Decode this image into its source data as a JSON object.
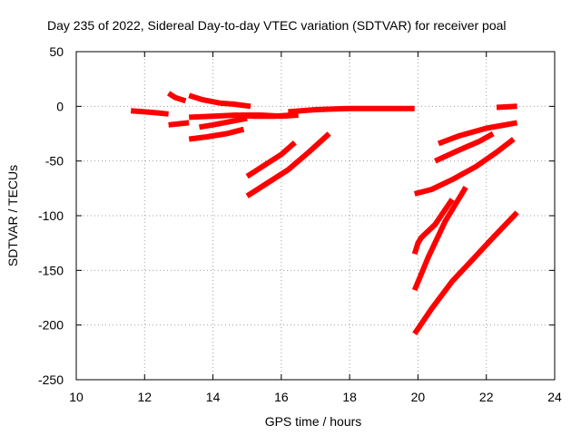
{
  "chart_data": {
    "type": "line",
    "title": "Day 235 of 2022, Sidereal Day-to-day VTEC variation (SDTVAR) for receiver poal",
    "xlabel": "GPS time / hours",
    "ylabel": "SDTVAR / TECUs",
    "xlim": [
      10,
      24
    ],
    "ylim": [
      -250,
      50
    ],
    "xticks": [
      "10",
      "12",
      "14",
      "16",
      "18",
      "20",
      "22",
      "24"
    ],
    "yticks": [
      "50",
      "0",
      "-50",
      "-100",
      "-150",
      "-200",
      "-250"
    ],
    "grid": true,
    "legend": "none",
    "color": "#ff0000",
    "series": [
      {
        "x": [
          11.6,
          12.0,
          12.4,
          12.7
        ],
        "y": [
          -4,
          -5,
          -6,
          -7
        ]
      },
      {
        "x": [
          12.7,
          12.9,
          13.2
        ],
        "y": [
          12,
          8,
          5
        ]
      },
      {
        "x": [
          13.3,
          13.7,
          14.2,
          14.6,
          15.1
        ],
        "y": [
          10,
          6,
          3,
          2,
          0
        ]
      },
      {
        "x": [
          12.7,
          13.0,
          13.3
        ],
        "y": [
          -17,
          -16,
          -15
        ]
      },
      {
        "x": [
          13.3,
          14.0,
          14.7,
          15.2,
          15.8,
          16.3
        ],
        "y": [
          -10,
          -9,
          -8,
          -9,
          -9,
          -8
        ]
      },
      {
        "x": [
          13.6,
          14.0,
          14.5,
          15.0
        ],
        "y": [
          -19,
          -17,
          -14,
          -11
        ]
      },
      {
        "x": [
          13.3,
          13.8,
          14.4,
          14.9
        ],
        "y": [
          -30,
          -28,
          -25,
          -21
        ]
      },
      {
        "x": [
          14.8,
          15.4,
          16.0,
          16.5
        ],
        "y": [
          -8,
          -8,
          -9,
          -8
        ]
      },
      {
        "x": [
          16.2,
          17.0,
          18.0,
          19.0,
          19.9
        ],
        "y": [
          -5,
          -3,
          -2,
          -2,
          -2
        ]
      },
      {
        "x": [
          15.0,
          15.5,
          16.0,
          16.4
        ],
        "y": [
          -64,
          -54,
          -44,
          -33
        ]
      },
      {
        "x": [
          15.0,
          15.6,
          16.2,
          16.8,
          17.4
        ],
        "y": [
          -82,
          -70,
          -58,
          -42,
          -25
        ]
      },
      {
        "x": [
          22.3,
          22.9
        ],
        "y": [
          -1,
          0
        ]
      },
      {
        "x": [
          20.6,
          21.2,
          22.0,
          22.9
        ],
        "y": [
          -34,
          -27,
          -20,
          -15
        ]
      },
      {
        "x": [
          20.5,
          21.2,
          21.8,
          22.2
        ],
        "y": [
          -50,
          -40,
          -32,
          -25
        ]
      },
      {
        "x": [
          19.9,
          20.4,
          21.0,
          21.7,
          22.3,
          22.8
        ],
        "y": [
          -80,
          -76,
          -67,
          -55,
          -42,
          -30
        ]
      },
      {
        "x": [
          19.9,
          20.0,
          20.1,
          20.5,
          21.0
        ],
        "y": [
          -135,
          -125,
          -120,
          -108,
          -85
        ]
      },
      {
        "x": [
          19.9,
          20.3,
          20.8,
          21.4
        ],
        "y": [
          -168,
          -138,
          -105,
          -74
        ]
      },
      {
        "x": [
          19.9,
          20.4,
          21.0,
          21.6,
          22.2,
          22.9
        ],
        "y": [
          -208,
          -185,
          -160,
          -140,
          -120,
          -97
        ]
      }
    ]
  }
}
